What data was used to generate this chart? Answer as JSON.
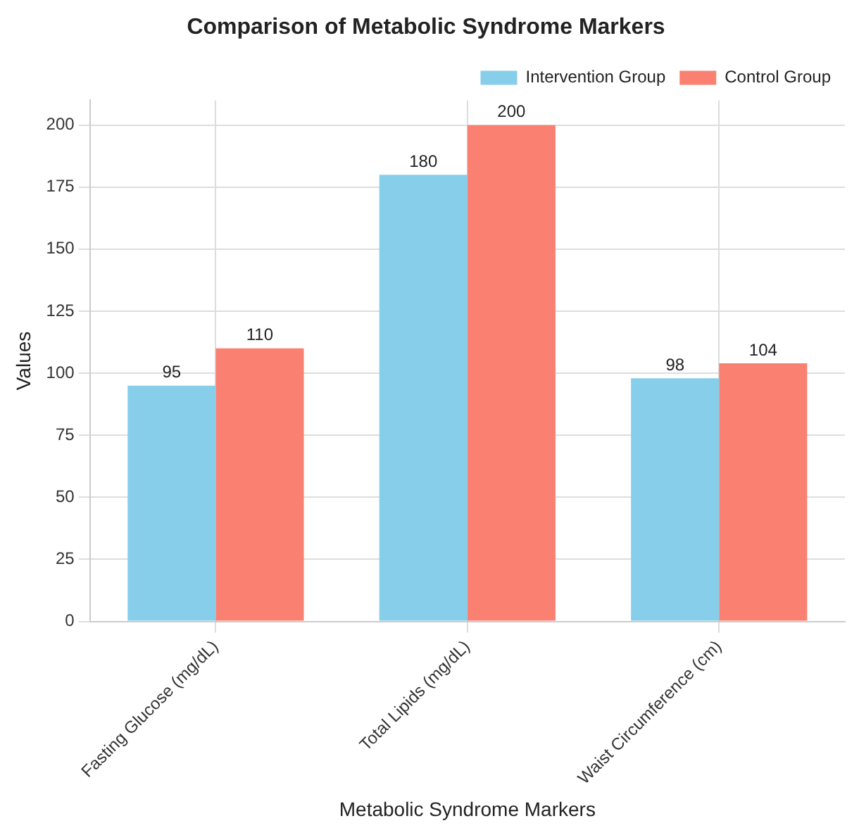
{
  "chart_data": {
    "type": "bar",
    "title": "Comparison of Metabolic Syndrome Markers",
    "xlabel": "Metabolic Syndrome Markers",
    "ylabel": "Values",
    "categories": [
      "Fasting Glucose (mg/dL)",
      "Total Lipids (mg/dL)",
      "Waist Circumference (cm)"
    ],
    "series": [
      {
        "name": "Intervention Group",
        "color": "#87ceeb",
        "values": [
          95,
          180,
          98
        ]
      },
      {
        "name": "Control Group",
        "color": "#fa8072",
        "values": [
          110,
          200,
          104
        ]
      }
    ],
    "ylim": [
      0,
      210
    ],
    "yticks": [
      0,
      25,
      50,
      75,
      100,
      125,
      150,
      175,
      200
    ],
    "grid": true,
    "legend": "top right",
    "data_labels": true
  }
}
